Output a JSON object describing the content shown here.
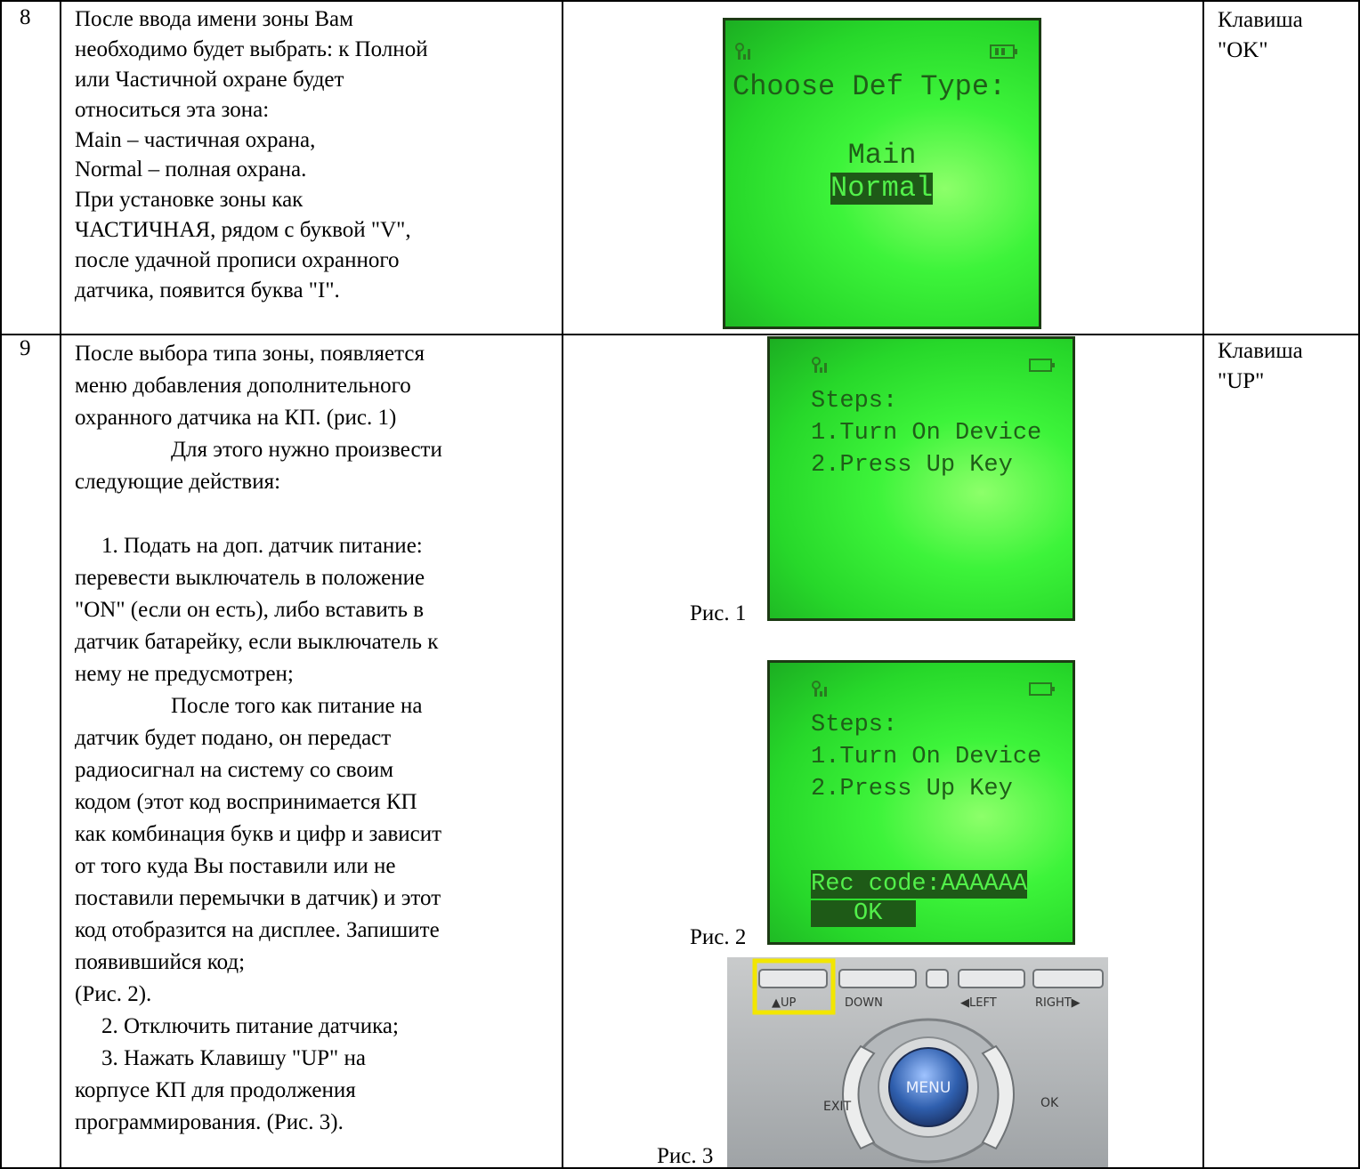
{
  "table": {
    "rows": [
      {
        "number": "8",
        "text": [
          "После ввода имени зоны Вам",
          "необходимо будет выбрать: к Полной",
          "или Частичной охране будет",
          "относиться эта зона:",
          "Main – частичная охрана,",
          "Normal – полная охрана.",
          "При установке зоны как",
          "ЧАСТИЧНАЯ, рядом с буквой \"V\",",
          "после удачной прописи охранного",
          "датчика, появится буква \"I\"."
        ],
        "figures": [
          {
            "screen": [
              "Choose Def Type:",
              "Main",
              "Normal"
            ]
          }
        ],
        "key": [
          "Клавиша",
          "\"OK\""
        ]
      },
      {
        "number": "9",
        "text": [
          "После выбора типа зоны, появляется",
          "меню добавления дополнительного",
          "охранного датчика на КП. (рис. 1)",
          "Для этого нужно произвести",
          "следующие действия:",
          "1. Подать на доп. датчик питание:",
          "перевести выключатель в положение",
          "\"ON\" (если он есть), либо вставить в",
          "датчик батарейку, если выключатель к",
          "нему не предусмотрен;",
          "После того как питание на",
          "датчик будет подано, он передаст",
          "радиосигнал на систему со своим",
          "кодом (этот код воспринимается КП",
          "как комбинация букв и цифр и зависит",
          "от того куда Вы поставили или не",
          "поставили перемычки в датчик) и этот",
          "код отобразится на дисплее. Запишите",
          "появившийся код;",
          "(Рис. 2).",
          "2. Отключить питание датчика;",
          "3. Нажать Клавишу \"UP\" на",
          "корпусе КП для продолжения",
          "программирования. (Рис. 3)."
        ],
        "figures": [
          {
            "caption": "Рис. 1",
            "screen": [
              "Steps:",
              "1.Turn On Device",
              "2.Press Up Key"
            ]
          },
          {
            "caption": "Рис. 2",
            "screen": [
              "Steps:",
              "1.Turn On Device",
              "2.Press Up Key",
              "Rec code:AAAAAA",
              "OK"
            ]
          },
          {
            "caption": "Рис. 3",
            "keypad": [
              "▲UP",
              "DOWN",
              "◀LEFT",
              "RIGHT▶",
              "EXIT",
              "MENU",
              "OK"
            ]
          }
        ],
        "key": [
          "Клавиша",
          "\"UP\""
        ]
      }
    ]
  }
}
